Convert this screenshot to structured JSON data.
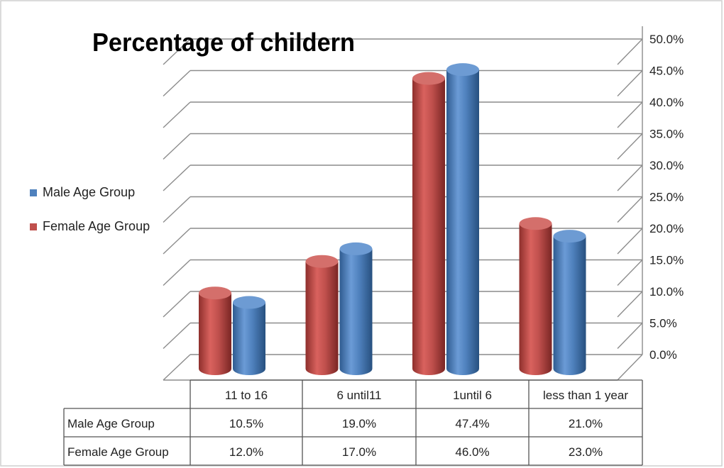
{
  "chart_data": {
    "type": "bar",
    "title": "Percentage of childern",
    "categories": [
      "11 to 16",
      "6 until11",
      "1until 6",
      "less than 1 year"
    ],
    "series": [
      {
        "name": "Female Age Group",
        "values": [
          12.0,
          17.0,
          46.0,
          23.0
        ],
        "color": "#c0504d",
        "value_labels": [
          "12.0%",
          "17.0%",
          "46.0%",
          "23.0%"
        ]
      },
      {
        "name": "Male Age Group",
        "values": [
          10.5,
          19.0,
          47.4,
          21.0
        ],
        "color": "#4f81bd",
        "value_labels": [
          "10.5%",
          "19.0%",
          "47.4%",
          "21.0%"
        ]
      }
    ],
    "legend": {
      "position": "left",
      "items": [
        {
          "label": "Male Age Group",
          "color": "#4f81bd"
        },
        {
          "label": "Female Age Group",
          "color": "#c0504d"
        }
      ]
    },
    "ylim": [
      0,
      50
    ],
    "yticks": [
      "0.0%",
      "5.0%",
      "10.0%",
      "15.0%",
      "20.0%",
      "25.0%",
      "30.0%",
      "35.0%",
      "40.0%",
      "45.0%",
      "50.0%"
    ],
    "grid": true,
    "style": "3d-cylinder",
    "data_table": {
      "rows": [
        {
          "label": "Male Age Group",
          "cells": [
            "10.5%",
            "19.0%",
            "47.4%",
            "21.0%"
          ]
        },
        {
          "label": "Female Age Group",
          "cells": [
            "12.0%",
            "17.0%",
            "46.0%",
            "23.0%"
          ]
        }
      ]
    }
  }
}
